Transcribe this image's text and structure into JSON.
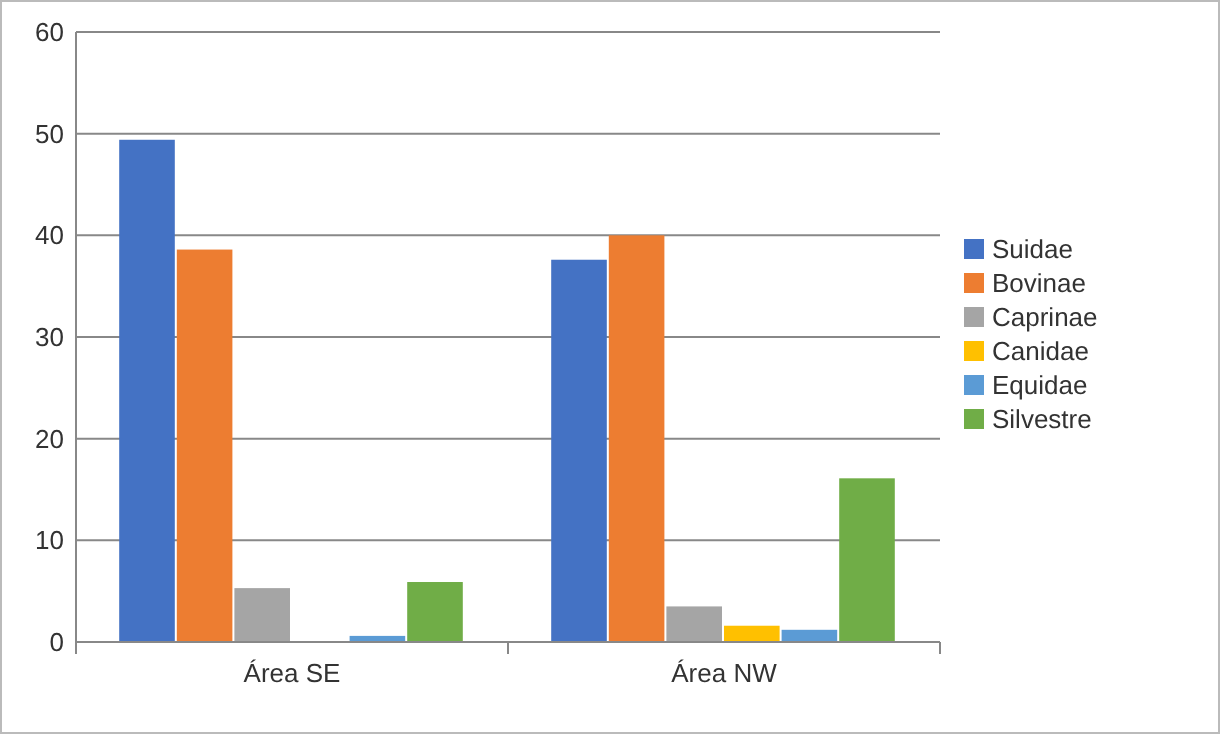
{
  "chart_data": {
    "type": "bar",
    "categories": [
      "Área SE",
      "Área NW"
    ],
    "series": [
      {
        "name": "Suidae",
        "color": "#4472c4",
        "values": [
          49.4,
          37.6
        ]
      },
      {
        "name": "Bovinae",
        "color": "#ed7d31",
        "values": [
          38.6,
          40
        ]
      },
      {
        "name": "Caprinae",
        "color": "#a5a5a5",
        "values": [
          5.3,
          3.5
        ]
      },
      {
        "name": "Canidae",
        "color": "#ffc000",
        "values": [
          0,
          1.6
        ]
      },
      {
        "name": "Equidae",
        "color": "#5b9bd5",
        "values": [
          0.6,
          1.2
        ]
      },
      {
        "name": "Silvestre",
        "color": "#70ad47",
        "values": [
          5.9,
          16.1
        ]
      }
    ],
    "ylim": [
      0,
      60
    ],
    "yticks": [
      0,
      10,
      20,
      30,
      40,
      50,
      60
    ],
    "grid": "y",
    "legend": "right"
  }
}
